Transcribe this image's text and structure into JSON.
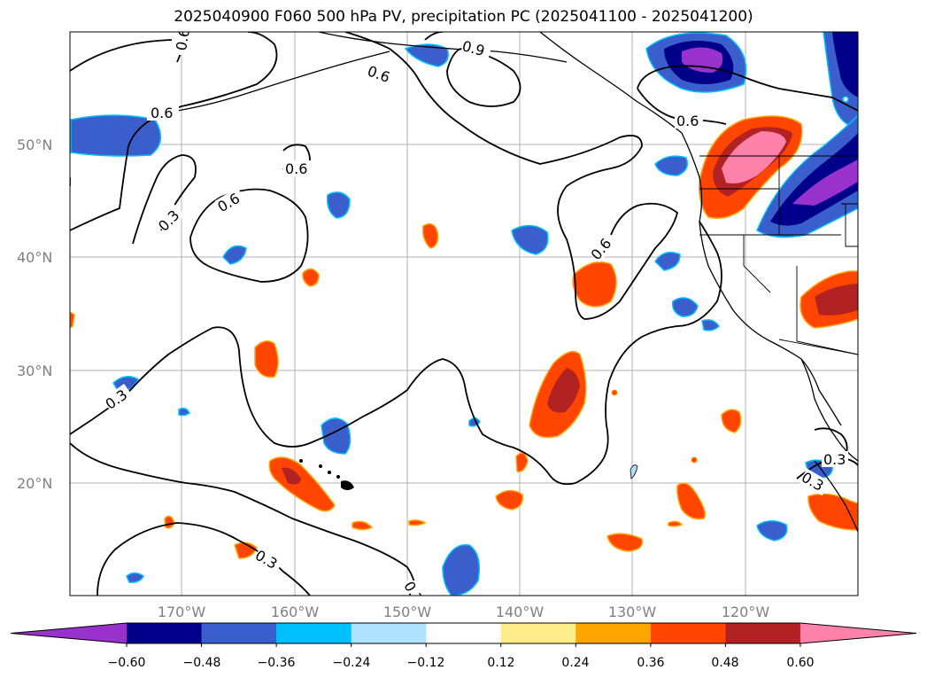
{
  "title": "2025040900 F060 500 hPa PV, precipitation PC (2025041100 - 2025041200)",
  "map": {
    "lat_labels": [
      "50°N",
      "40°N",
      "30°N",
      "20°N"
    ],
    "lon_labels": [
      "170°W",
      "160°W",
      "150°W",
      "140°W",
      "130°W",
      "120°W"
    ],
    "gridlines": true
  },
  "contour_labels": [
    "0.6",
    "0.6",
    "0.9",
    "0.6",
    "0.6",
    "0.6",
    "0.3",
    "0.6",
    "0.6",
    "0.3",
    "0.3",
    "0.3",
    "0.3",
    "0.3"
  ],
  "colorbar": {
    "ticks": [
      "−0.60",
      "−0.48",
      "−0.36",
      "−0.24",
      "−0.12",
      "0.12",
      "0.24",
      "0.36",
      "0.48",
      "0.60"
    ],
    "colors": [
      "#9932cc",
      "#00008b",
      "#3a5fcd",
      "#00bfff",
      "#b0e2ff",
      "#ffffff",
      "#ffec8b",
      "#ffa500",
      "#ff4500",
      "#b22222",
      "#ff82ab"
    ],
    "extend": "both"
  }
}
